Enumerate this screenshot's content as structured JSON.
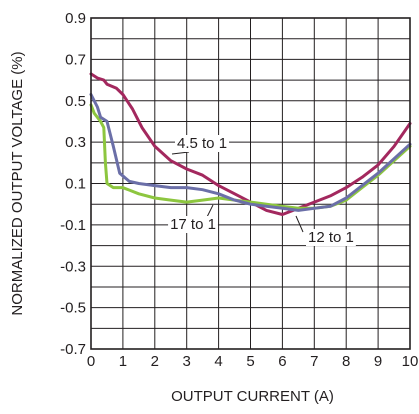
{
  "chart_data": {
    "type": "line",
    "xlabel": "OUTPUT CURRENT (A)",
    "ylabel": "NORMALIZED OUTPUT VOLTAGE (%)",
    "xlim": [
      0,
      10
    ],
    "ylim": [
      -0.7,
      0.9
    ],
    "x_ticks": [
      "0",
      "1",
      "2",
      "3",
      "4",
      "5",
      "6",
      "7",
      "8",
      "9",
      "10"
    ],
    "y_ticks": [
      "0.9",
      "0.7",
      "0.5",
      "0.3",
      "0.1",
      "-0.1",
      "-0.3",
      "-0.5",
      "-0.7"
    ],
    "grid": true,
    "series": [
      {
        "name": "4.5 to 1",
        "color": "#a3285e",
        "points": [
          [
            0,
            0.63
          ],
          [
            0.2,
            0.61
          ],
          [
            0.4,
            0.6
          ],
          [
            0.5,
            0.58
          ],
          [
            0.8,
            0.56
          ],
          [
            1.0,
            0.53
          ],
          [
            1.3,
            0.46
          ],
          [
            1.6,
            0.37
          ],
          [
            2.0,
            0.28
          ],
          [
            2.5,
            0.21
          ],
          [
            3.0,
            0.17
          ],
          [
            3.5,
            0.14
          ],
          [
            4.0,
            0.09
          ],
          [
            4.5,
            0.05
          ],
          [
            5.0,
            0.01
          ],
          [
            5.5,
            -0.03
          ],
          [
            6.0,
            -0.05
          ],
          [
            6.5,
            -0.02
          ],
          [
            7.0,
            0.01
          ],
          [
            7.5,
            0.04
          ],
          [
            8.0,
            0.08
          ],
          [
            8.5,
            0.13
          ],
          [
            9.0,
            0.19
          ],
          [
            9.5,
            0.28
          ],
          [
            10.0,
            0.39
          ]
        ]
      },
      {
        "name": "17 to 1",
        "color": "#8dc63f",
        "points": [
          [
            0,
            0.48
          ],
          [
            0.1,
            0.44
          ],
          [
            0.3,
            0.4
          ],
          [
            0.4,
            0.37
          ],
          [
            0.45,
            0.2
          ],
          [
            0.5,
            0.1
          ],
          [
            0.7,
            0.08
          ],
          [
            1.0,
            0.08
          ],
          [
            1.5,
            0.05
          ],
          [
            2.0,
            0.03
          ],
          [
            2.5,
            0.02
          ],
          [
            3.0,
            0.01
          ],
          [
            3.5,
            0.02
          ],
          [
            4.0,
            0.03
          ],
          [
            4.5,
            0.02
          ],
          [
            5.0,
            0.01
          ],
          [
            5.5,
            0.0
          ],
          [
            6.0,
            -0.01
          ],
          [
            6.5,
            -0.02
          ],
          [
            7.0,
            -0.02
          ],
          [
            7.5,
            -0.01
          ],
          [
            8.0,
            0.02
          ],
          [
            8.5,
            0.08
          ],
          [
            9.0,
            0.14
          ],
          [
            9.5,
            0.21
          ],
          [
            10.0,
            0.28
          ]
        ]
      },
      {
        "name": "12 to 1",
        "color": "#6b6fa8",
        "points": [
          [
            0,
            0.53
          ],
          [
            0.2,
            0.47
          ],
          [
            0.3,
            0.42
          ],
          [
            0.5,
            0.4
          ],
          [
            0.7,
            0.28
          ],
          [
            0.9,
            0.15
          ],
          [
            1.2,
            0.11
          ],
          [
            1.5,
            0.1
          ],
          [
            2.0,
            0.09
          ],
          [
            2.5,
            0.08
          ],
          [
            3.0,
            0.08
          ],
          [
            3.5,
            0.07
          ],
          [
            4.0,
            0.05
          ],
          [
            4.5,
            0.02
          ],
          [
            5.0,
            0.0
          ],
          [
            5.5,
            -0.01
          ],
          [
            6.0,
            -0.02
          ],
          [
            6.5,
            -0.03
          ],
          [
            7.0,
            -0.02
          ],
          [
            7.5,
            -0.01
          ],
          [
            8.0,
            0.03
          ],
          [
            8.5,
            0.09
          ],
          [
            9.0,
            0.15
          ],
          [
            9.5,
            0.22
          ],
          [
            10.0,
            0.29
          ]
        ]
      }
    ]
  }
}
